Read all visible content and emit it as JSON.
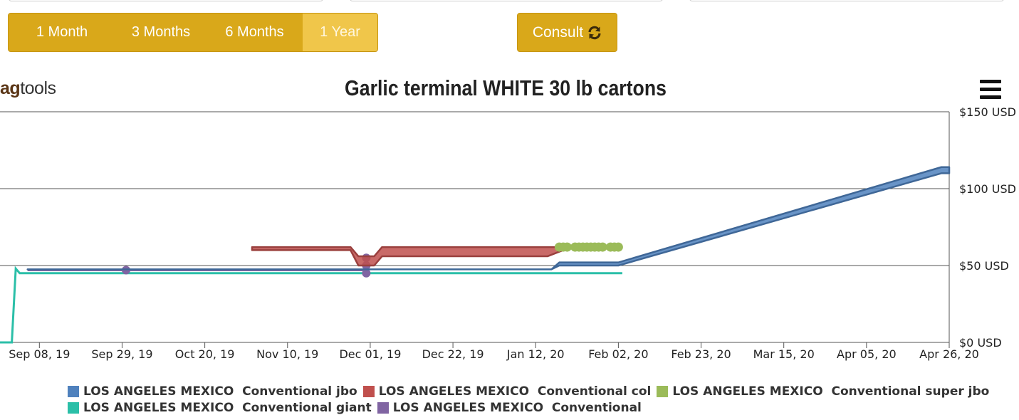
{
  "controls": {
    "ranges": [
      "1 Month",
      "3 Months",
      "6 Months",
      "1 Year"
    ],
    "active_range": "1 Year",
    "consult_label": "Consult"
  },
  "brand": {
    "prefix": "ag",
    "suffix": "tools"
  },
  "colors": {
    "button": "#d9a81a",
    "button_active": "#f0c64a",
    "jbo": "#4f81bd",
    "col": "#c0504d",
    "super_jbo": "#9bbb59",
    "giant": "#2bbfa8",
    "conventional": "#8064a2"
  },
  "chart_data": {
    "type": "line",
    "title": "Garlic terminal WHITE 30 lb cartons",
    "x_ticks": [
      "Sep 08, 19",
      "Sep 29, 19",
      "Oct 20, 19",
      "Nov 10, 19",
      "Dec 01, 19",
      "Dec 22, 19",
      "Jan 12, 20",
      "Feb 02, 20",
      "Feb 23, 20",
      "Mar 15, 20",
      "Apr 05, 20",
      "Apr 26, 20"
    ],
    "x_range": [
      "2019-08-29",
      "2020-04-26"
    ],
    "y_ticks": [
      "$0 USD",
      "$50 USD",
      "$100 USD",
      "$150 USD"
    ],
    "y_tick_values": [
      0,
      50,
      100,
      150
    ],
    "ylim": [
      0,
      150
    ],
    "y_axis_side": "right",
    "grid": true,
    "legend_position": "bottom",
    "series": [
      {
        "name": "LOS ANGELES MEXICO  Conventional jbo",
        "color": "#4f81bd",
        "band": true,
        "points": [
          {
            "x": "2019-09-05",
            "low": 47.5,
            "high": 47.5
          },
          {
            "x": "2020-01-16",
            "low": 47.5,
            "high": 47.5
          },
          {
            "x": "2020-01-18",
            "low": 50,
            "high": 52
          },
          {
            "x": "2020-02-02",
            "low": 50,
            "high": 52
          },
          {
            "x": "2020-04-24",
            "low": 110,
            "high": 114
          },
          {
            "x": "2020-04-26",
            "low": 110,
            "high": 114
          }
        ]
      },
      {
        "name": "LOS ANGELES MEXICO  Conventional col",
        "color": "#c0504d",
        "band": true,
        "points": [
          {
            "x": "2019-11-01",
            "low": 60,
            "high": 62
          },
          {
            "x": "2019-11-26",
            "low": 60,
            "high": 62
          },
          {
            "x": "2019-11-28",
            "low": 50,
            "high": 56
          },
          {
            "x": "2019-12-02",
            "low": 50,
            "high": 56
          },
          {
            "x": "2019-12-04",
            "low": 56,
            "high": 62
          },
          {
            "x": "2020-01-15",
            "low": 56,
            "high": 62
          },
          {
            "x": "2020-01-19",
            "low": 60,
            "high": 62
          }
        ]
      },
      {
        "name": "LOS ANGELES MEXICO  Conventional super jbo",
        "color": "#9bbb59",
        "band": false,
        "marker": "circle",
        "points": [
          {
            "x": "2020-01-18",
            "y": 62
          },
          {
            "x": "2020-01-19",
            "y": 62
          },
          {
            "x": "2020-01-20",
            "y": 62
          },
          {
            "x": "2020-01-22",
            "y": 62
          },
          {
            "x": "2020-01-23",
            "y": 62
          },
          {
            "x": "2020-01-24",
            "y": 62
          },
          {
            "x": "2020-01-25",
            "y": 62
          },
          {
            "x": "2020-01-26",
            "y": 62
          },
          {
            "x": "2020-01-27",
            "y": 62
          },
          {
            "x": "2020-01-28",
            "y": 62
          },
          {
            "x": "2020-01-29",
            "y": 62
          },
          {
            "x": "2020-01-31",
            "y": 62
          },
          {
            "x": "2020-02-01",
            "y": 62
          },
          {
            "x": "2020-02-02",
            "y": 62
          }
        ]
      },
      {
        "name": "LOS ANGELES MEXICO  Conventional giant",
        "color": "#2bbfa8",
        "band": false,
        "points": [
          {
            "x": "2019-08-29",
            "y": 0
          },
          {
            "x": "2019-09-01",
            "y": 0
          },
          {
            "x": "2019-09-02",
            "y": 48
          },
          {
            "x": "2019-09-03",
            "y": 45
          },
          {
            "x": "2020-02-03",
            "y": 45
          }
        ]
      },
      {
        "name": "LOS ANGELES MEXICO  Conventional",
        "color": "#8064a2",
        "band": false,
        "points": [
          {
            "x": "2019-09-05",
            "y": 47
          },
          {
            "x": "2019-09-30",
            "y": 47
          },
          {
            "x": "2019-11-30",
            "y": 47
          }
        ],
        "markers": [
          {
            "x": "2019-09-30",
            "y": 47
          },
          {
            "x": "2019-11-30",
            "y": 55
          },
          {
            "x": "2019-11-30",
            "y": 50
          },
          {
            "x": "2019-11-30",
            "y": 45
          }
        ]
      }
    ]
  }
}
